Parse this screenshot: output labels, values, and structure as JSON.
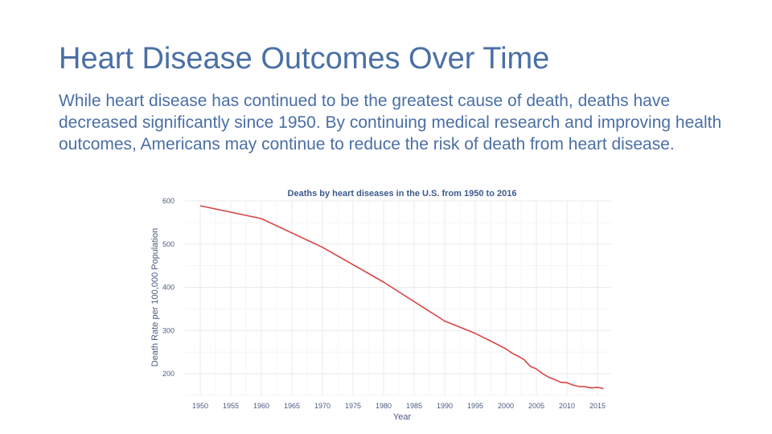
{
  "slide": {
    "title": "Heart Disease Outcomes Over Time",
    "body": "While heart disease has continued to be the greatest cause of death, deaths have decreased significantly since 1950.  By continuing medical research and improving health outcomes, Americans may continue to reduce the risk of death from heart disease."
  },
  "chart_data": {
    "type": "line",
    "title": "Deaths by heart diseases in the U.S. from 1950 to 2016",
    "xlabel": "Year",
    "ylabel": "Death Rate per 100,000 Population",
    "xlim": [
      1950,
      2016
    ],
    "ylim": [
      165,
      600
    ],
    "xticks": [
      1950,
      1955,
      1960,
      1965,
      1970,
      1975,
      1980,
      1985,
      1990,
      1995,
      2000,
      2005,
      2010,
      2015
    ],
    "yticks": [
      200,
      300,
      400,
      500,
      600
    ],
    "grid": true,
    "line_color": "#d94545",
    "series": [
      {
        "x": [
          1950,
          1960,
          1970,
          1980,
          1990,
          1995,
          1998,
          2000,
          2001,
          2002,
          2003,
          2004,
          2005,
          2006,
          2007,
          2008,
          2009,
          2010,
          2011,
          2012,
          2013,
          2014,
          2015,
          2016
        ],
        "values": [
          588.8,
          559.0,
          492.7,
          412.1,
          321.8,
          293.4,
          272.4,
          257.6,
          247.8,
          240.8,
          232.3,
          217.0,
          211.1,
          200.2,
          192.1,
          186.5,
          180.1,
          179.1,
          173.7,
          170.5,
          169.8,
          167.0,
          168.5,
          165.5
        ]
      }
    ]
  }
}
